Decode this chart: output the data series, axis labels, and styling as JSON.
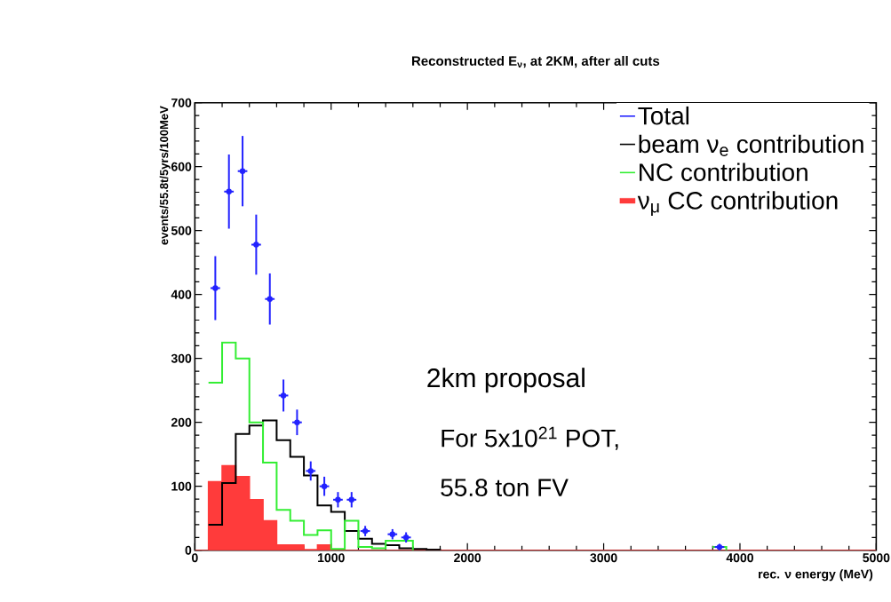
{
  "chart_data": {
    "type": "step",
    "title": "Reconstructed E$_{ν}$, at 2KM, after all cuts",
    "xlabel": "rec. ν energy (MeV)",
    "ylabel": "events/55.8t/5yrs/100MeV",
    "x": [
      0,
      100,
      200,
      300,
      400,
      500,
      600,
      700,
      800,
      900,
      1000,
      1100,
      1200,
      1300,
      1400,
      1500,
      1600,
      1700,
      1800,
      1900,
      2000,
      2100,
      2200,
      2300,
      2400,
      2500,
      2600,
      2700,
      2800,
      2900,
      3000,
      3100,
      3200,
      3300,
      3400,
      3500,
      3600,
      3700,
      3800,
      3900,
      4000,
      4100,
      4200,
      4300,
      4400,
      4500,
      4600,
      4700,
      4800,
      4900,
      5000
    ],
    "series": [
      {
        "name": "Total",
        "type": "scatter",
        "color": "#2222ff",
        "x": [
          150,
          250,
          350,
          450,
          550,
          650,
          750,
          850,
          950,
          1050,
          1150,
          1250,
          1450,
          1550,
          3850
        ],
        "values": [
          410,
          561,
          593,
          478,
          393,
          242,
          200,
          124,
          100,
          79,
          79,
          30,
          25,
          20,
          5
        ],
        "errors": [
          50,
          58,
          55,
          47,
          40,
          25,
          20,
          15,
          15,
          12,
          12,
          8,
          8,
          8,
          5
        ],
        "xerrors": [
          35,
          35,
          35,
          35,
          35,
          35,
          35,
          35,
          35,
          35,
          35,
          35,
          35,
          35,
          35
        ]
      },
      {
        "name": "beam ν$_{e}$ contribution",
        "color": "#000000",
        "values": [
          null,
          40,
          105,
          182,
          195,
          203,
          172,
          146,
          117,
          70,
          60,
          30,
          18,
          10,
          8,
          3,
          2,
          1,
          0,
          null,
          null,
          null,
          null,
          null,
          null,
          null,
          null,
          null,
          null,
          null,
          null,
          null,
          null,
          null,
          null,
          null,
          null,
          null,
          null,
          null,
          null,
          null,
          null,
          null,
          null,
          null,
          null,
          null,
          null,
          null,
          null
        ]
      },
      {
        "name": "NC contribution",
        "color": "#33ee33",
        "values": [
          null,
          262,
          325,
          300,
          200,
          137,
          63,
          46,
          24,
          31,
          2,
          46,
          5,
          3,
          15,
          15,
          0,
          null,
          null,
          null,
          null,
          null,
          null,
          null,
          null,
          null,
          null,
          null,
          null,
          null,
          null,
          null,
          null,
          null,
          null,
          null,
          null,
          null,
          5,
          0,
          null,
          null,
          null,
          null,
          null,
          null,
          null,
          null,
          null,
          null,
          null
        ]
      },
      {
        "name": "ν$_{μ}$ CC contribution",
        "type": "area",
        "color": "#ff3b3b",
        "values": [
          0,
          107,
          132,
          115,
          79,
          46,
          8,
          8,
          1,
          8,
          0,
          0,
          0,
          0,
          0,
          0,
          0,
          0,
          0,
          0,
          0,
          0,
          0,
          0,
          0,
          0,
          0,
          0,
          0,
          0,
          0,
          0,
          0,
          0,
          0,
          0,
          0,
          0,
          0,
          0,
          0,
          0,
          0,
          0,
          0,
          0,
          0,
          0,
          0,
          0,
          0
        ]
      }
    ],
    "xlim": [
      0,
      5000
    ],
    "ylim": [
      0,
      700
    ],
    "xticks": [
      0,
      1000,
      2000,
      3000,
      4000,
      5000
    ],
    "yticks": [
      0,
      100,
      200,
      300,
      400,
      500,
      600,
      700
    ],
    "legend": "top right",
    "grid": false,
    "annotations": [
      "2km proposal",
      "For 5x10$^{21}$ POT,",
      "55.8 ton FV"
    ]
  }
}
